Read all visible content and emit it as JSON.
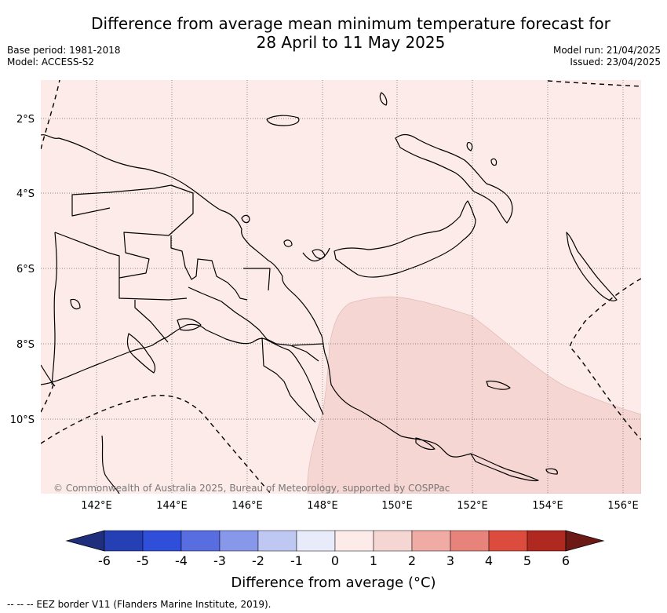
{
  "header": {
    "title_line1": "Difference from average mean minimum temperature forecast for",
    "title_line2": "28 April to 11 May 2025",
    "base_period": "Base period: 1981-2018",
    "model": "Model: ACCESS-S2",
    "model_run": "Model run: 21/04/2025",
    "issued": "Issued: 23/04/2025"
  },
  "map": {
    "latitude_labels": [
      "2°S",
      "4°S",
      "6°S",
      "8°S",
      "10°S"
    ],
    "longitude_labels": [
      "142°E",
      "144°E",
      "146°E",
      "148°E",
      "150°E",
      "152°E",
      "154°E",
      "156°E"
    ],
    "credit": "© Commonwealth of Australia 2025, Bureau of Meteorology, supported by COSPPac",
    "colors": {
      "anomaly_0_to_1": "#fcebe8",
      "anomaly_1_to_2": "#f6d6d3",
      "coastline": "#000000",
      "grid": "#666666"
    }
  },
  "colorbar": {
    "ticks": [
      "-6",
      "-5",
      "-4",
      "-3",
      "-2",
      "-1",
      "0",
      "1",
      "2",
      "3",
      "4",
      "5",
      "6"
    ],
    "colors": [
      "#1f2f7e",
      "#2540b5",
      "#2f4ed9",
      "#586ee0",
      "#8797ea",
      "#bfc8f3",
      "#e7ebfa",
      "#fcebe8",
      "#f6d6d3",
      "#f0aba4",
      "#e7837a",
      "#db4b3e",
      "#b02920",
      "#6d1a17"
    ],
    "label": "Difference from average (°C)"
  },
  "footnote": "--  --  -- EEZ border V11 (Flanders Marine Institute, 2019)."
}
